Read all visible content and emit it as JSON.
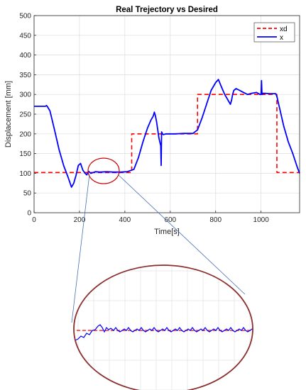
{
  "chart_data": {
    "type": "line",
    "title": "Real Trejectory vs Desired",
    "xlabel": "Time[s]",
    "ylabel": "Displacement [mm]",
    "xlim": [
      0,
      1170
    ],
    "ylim": [
      0,
      500
    ],
    "xticks": [
      0,
      200,
      400,
      600,
      800,
      1000
    ],
    "yticks": [
      0,
      50,
      100,
      150,
      200,
      250,
      300,
      350,
      400,
      450,
      500
    ],
    "grid": true,
    "legend_position": "top-right",
    "series": [
      {
        "name": "xd",
        "color": "#ff0000",
        "style": "dashed",
        "x": [
          0,
          430,
          430,
          720,
          720,
          1070,
          1070,
          1170
        ],
        "y": [
          102,
          102,
          200,
          200,
          300,
          300,
          102,
          102
        ]
      },
      {
        "name": "x",
        "color": "#0000ff",
        "style": "solid",
        "x": [
          0,
          50,
          55,
          60,
          70,
          90,
          110,
          130,
          150,
          165,
          175,
          185,
          195,
          205,
          215,
          225,
          232,
          240,
          250,
          260,
          270,
          290,
          320,
          350,
          380,
          410,
          440,
          460,
          480,
          500,
          515,
          525,
          530,
          535,
          540,
          550,
          558,
          560,
          562,
          566,
          570,
          580,
          620,
          660,
          700,
          720,
          740,
          760,
          780,
          800,
          812,
          825,
          840,
          855,
          865,
          870,
          875,
          880,
          890,
          900,
          920,
          940,
          960,
          980,
          995,
          1000,
          1002,
          1004,
          1006,
          1010,
          1040,
          1065,
          1070,
          1080,
          1100,
          1120,
          1140,
          1160,
          1170
        ],
        "y": [
          270,
          270,
          272,
          268,
          258,
          210,
          160,
          120,
          90,
          65,
          75,
          95,
          120,
          125,
          108,
          100,
          96,
          105,
          100,
          102,
          104,
          103,
          104,
          103,
          103,
          104,
          110,
          140,
          180,
          215,
          235,
          245,
          255,
          245,
          230,
          190,
          170,
          120,
          205,
          200,
          198,
          200,
          200,
          201,
          201,
          210,
          240,
          275,
          310,
          330,
          338,
          320,
          300,
          285,
          275,
          285,
          300,
          310,
          315,
          312,
          306,
          300,
          303,
          305,
          300,
          300,
          335,
          305,
          300,
          303,
          302,
          302,
          295,
          270,
          220,
          180,
          150,
          115,
          100
        ]
      }
    ],
    "inset": {
      "note": "zoom ellipse of the x and xd curves around the 100 mm setpoint"
    }
  }
}
